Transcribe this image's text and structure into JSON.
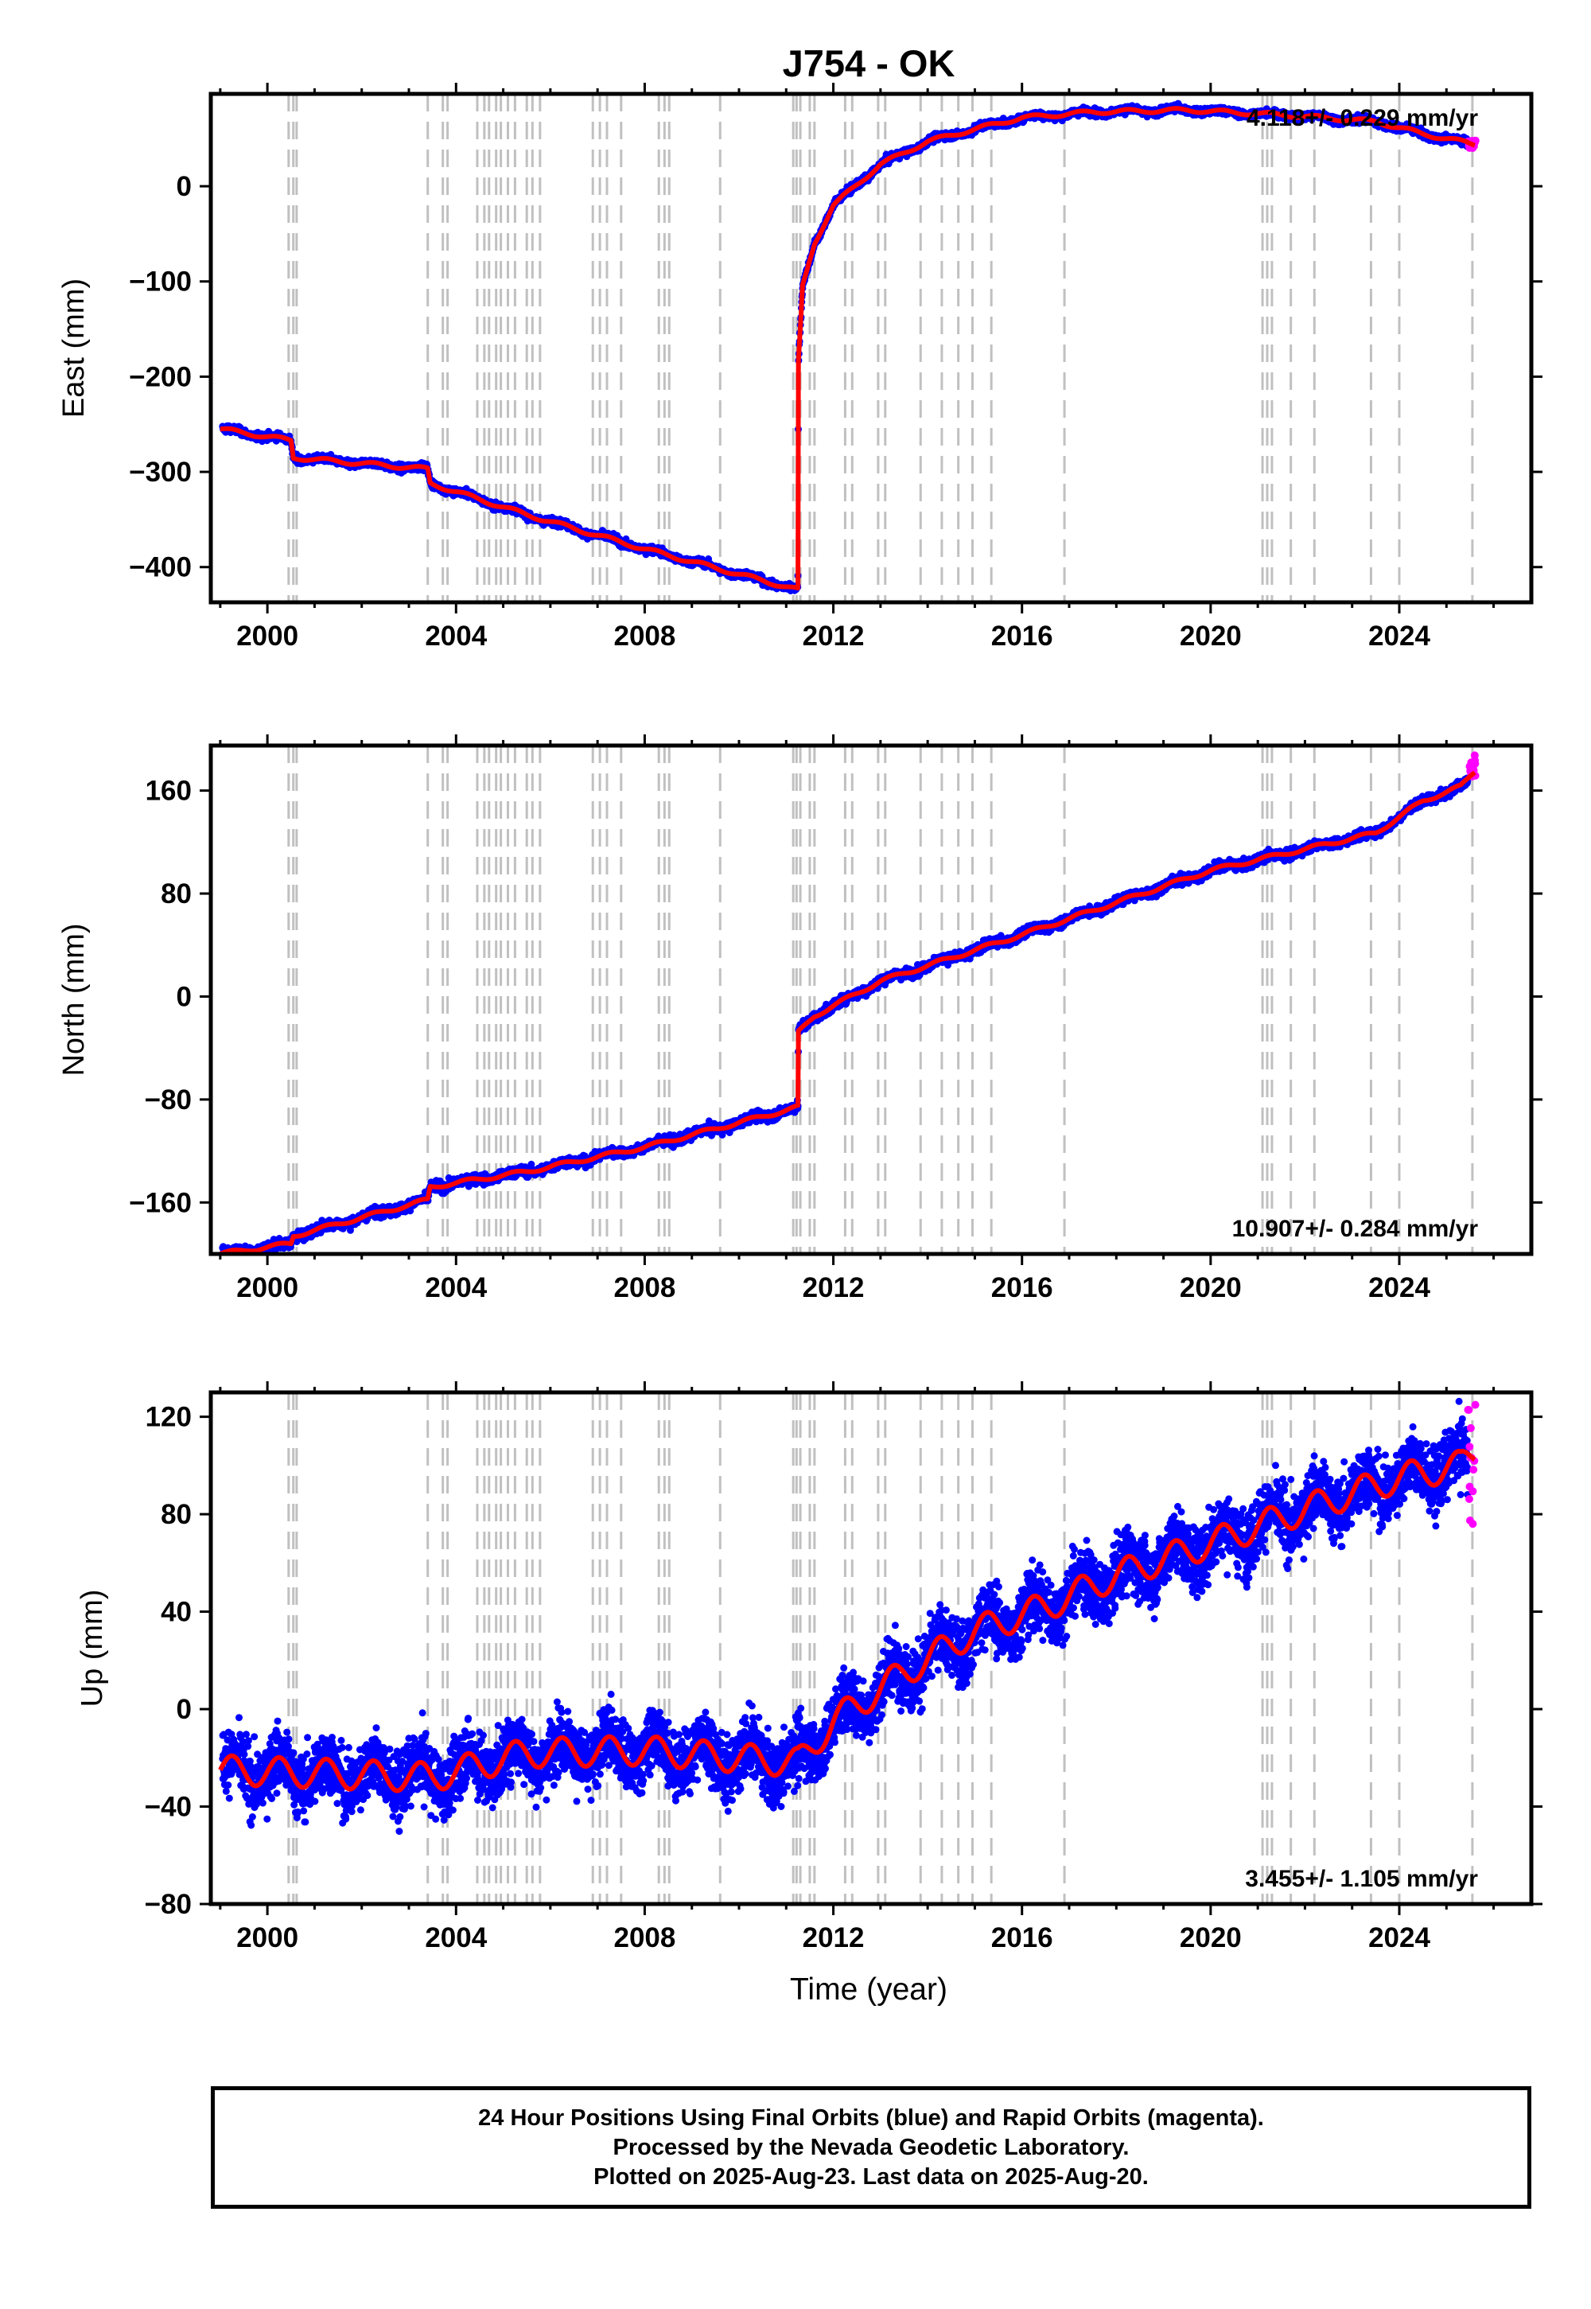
{
  "title": "J754 - OK",
  "xlabel": "Time (year)",
  "colors": {
    "final_orbits": "#0000ff",
    "rapid_orbits": "#ff00ff",
    "model": "#ff0000",
    "event_lines": "#c0c0c0",
    "frame": "#000000"
  },
  "caption": {
    "line1": "24 Hour Positions Using Final Orbits (blue) and Rapid Orbits (magenta).",
    "line2": "Processed by the Nevada Geodetic Laboratory.",
    "line3": "Plotted on 2025-Aug-23. Last data on 2025-Aug-20."
  },
  "chart_data": [
    {
      "type": "scatter",
      "component": "east",
      "ylabel": "East (mm)",
      "rate_label": "4.118+/- 0.229 mm/yr",
      "rate_position": "top-right",
      "xlim": [
        1998.8,
        2026.8
      ],
      "ylim": [
        -437,
        97
      ],
      "xticks": [
        2000,
        2004,
        2008,
        2012,
        2016,
        2020,
        2024
      ],
      "yticks": [
        0,
        -100,
        -200,
        -300,
        -400
      ],
      "ytick_labels": [
        "0",
        "−100",
        "−200",
        "−300",
        "−400"
      ],
      "model_breakpoints": [
        [
          1999.0,
          -255
        ],
        [
          2000.5,
          -267
        ],
        [
          2000.55,
          -285
        ],
        [
          2003.4,
          -297
        ],
        [
          2003.45,
          -312
        ],
        [
          2005.5,
          -345
        ],
        [
          2008.0,
          -381
        ],
        [
          2011.25,
          -424
        ],
        [
          2011.26,
          -185
        ],
        [
          2011.35,
          -105
        ],
        [
          2011.6,
          -60
        ],
        [
          2012.0,
          -20
        ],
        [
          2013.0,
          23
        ],
        [
          2014.0,
          47
        ],
        [
          2015.0,
          60
        ],
        [
          2016.0,
          72
        ],
        [
          2017.5,
          78
        ],
        [
          2019.5,
          80
        ],
        [
          2021.5,
          75
        ],
        [
          2023.5,
          68
        ],
        [
          2024.5,
          55
        ],
        [
          2025.6,
          44
        ]
      ],
      "scatter": {
        "noise": 3,
        "seasonal": 2
      },
      "rapid_tail": {
        "x_start": 2025.45,
        "x_end": 2025.63,
        "y_range": [
          40,
          48
        ]
      }
    },
    {
      "type": "scatter",
      "component": "north",
      "ylabel": "North (mm)",
      "rate_label": "10.907+/- 0.284 mm/yr",
      "rate_position": "bottom-right",
      "xlim": [
        1998.8,
        2026.8
      ],
      "ylim": [
        -200,
        195
      ],
      "xticks": [
        2000,
        2004,
        2008,
        2012,
        2016,
        2020,
        2024
      ],
      "yticks": [
        160,
        80,
        0,
        -80,
        -160
      ],
      "ytick_labels": [
        "160",
        "80",
        "0",
        "−80",
        "−160"
      ],
      "model_breakpoints": [
        [
          1999.0,
          -200
        ],
        [
          2000.5,
          -192
        ],
        [
          2000.55,
          -186
        ],
        [
          2003.4,
          -158
        ],
        [
          2003.45,
          -148
        ],
        [
          2005.5,
          -136
        ],
        [
          2008.0,
          -117
        ],
        [
          2011.25,
          -86
        ],
        [
          2011.26,
          -28
        ],
        [
          2011.6,
          -15
        ],
        [
          2013.0,
          12
        ],
        [
          2016.0,
          48
        ],
        [
          2020.0,
          98
        ],
        [
          2023.5,
          127
        ],
        [
          2024.5,
          152
        ],
        [
          2025.3,
          163
        ],
        [
          2025.6,
          175
        ]
      ],
      "scatter": {
        "noise": 3,
        "seasonal": 1.5
      },
      "rapid_tail": {
        "x_start": 2025.45,
        "x_end": 2025.63,
        "y_range": [
          170,
          188
        ]
      }
    },
    {
      "type": "scatter",
      "component": "up",
      "ylabel": "Up (mm)",
      "rate_label": "3.455+/- 1.105 mm/yr",
      "rate_position": "bottom-right",
      "xlim": [
        1998.8,
        2026.8
      ],
      "ylim": [
        -80,
        130
      ],
      "xticks": [
        2000,
        2004,
        2008,
        2012,
        2016,
        2020,
        2024
      ],
      "yticks": [
        120,
        80,
        40,
        0,
        -40,
        -80
      ],
      "ytick_labels": [
        "120",
        "80",
        "40",
        "0",
        "−40",
        "−80"
      ],
      "model_breakpoints": [
        [
          1999.0,
          -25
        ],
        [
          2003.5,
          -28
        ],
        [
          2005.5,
          -18
        ],
        [
          2008.0,
          -17
        ],
        [
          2011.25,
          -22
        ],
        [
          2012.0,
          -5
        ],
        [
          2013.5,
          15
        ],
        [
          2015.0,
          32
        ],
        [
          2016.5,
          42
        ],
        [
          2018.0,
          55
        ],
        [
          2020.0,
          68
        ],
        [
          2022.0,
          82
        ],
        [
          2024.0,
          95
        ],
        [
          2025.3,
          100
        ],
        [
          2025.6,
          106
        ]
      ],
      "scatter": {
        "noise": 10,
        "seasonal": 6
      },
      "rapid_tail": {
        "x_start": 2025.45,
        "x_end": 2025.63,
        "y_range": [
          70,
          127
        ]
      }
    }
  ],
  "event_lines": [
    2000.45,
    2000.55,
    2000.62,
    2003.4,
    2003.72,
    2003.82,
    2004.45,
    2004.6,
    2004.7,
    2004.85,
    2004.95,
    2005.1,
    2005.25,
    2005.5,
    2005.62,
    2005.78,
    2006.9,
    2007.05,
    2007.2,
    2007.5,
    2008.3,
    2008.42,
    2008.52,
    2009.6,
    2011.15,
    2011.22,
    2011.3,
    2011.5,
    2011.6,
    2012.25,
    2012.4,
    2012.95,
    2013.1,
    2013.85,
    2014.3,
    2014.65,
    2014.95,
    2015.35,
    2016.9,
    2021.1,
    2021.2,
    2021.3,
    2021.7,
    2022.2,
    2023.4,
    2024.0,
    2025.55
  ]
}
